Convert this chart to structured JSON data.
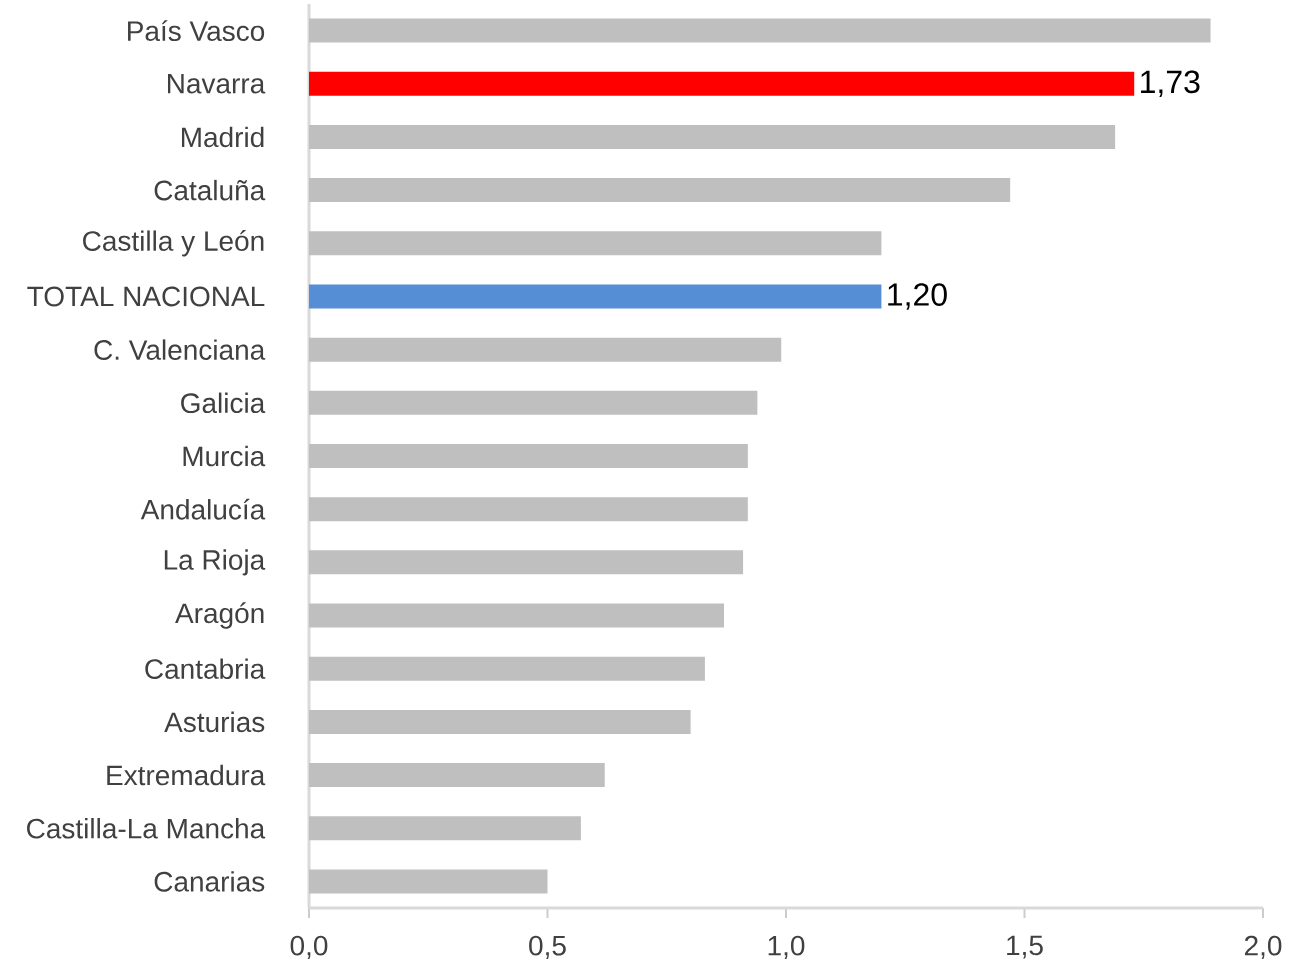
{
  "chart_data": {
    "type": "bar",
    "orientation": "horizontal",
    "categories": [
      "País Vasco",
      "Navarra",
      "Madrid",
      "Cataluña",
      "Castilla y León",
      "TOTAL NACIONAL",
      "C. Valenciana",
      "Galicia",
      "Murcia",
      "Andalucía",
      "La Rioja",
      "Aragón",
      "Cantabria",
      "Asturias",
      "Extremadura",
      "Castilla-La Mancha",
      "Canarias"
    ],
    "values": [
      1.89,
      1.73,
      1.69,
      1.47,
      1.2,
      1.2,
      0.99,
      0.94,
      0.92,
      0.92,
      0.91,
      0.87,
      0.83,
      0.8,
      0.62,
      0.57,
      0.5
    ],
    "colors": [
      "#bfbfbf",
      "#ff0000",
      "#bfbfbf",
      "#bfbfbf",
      "#bfbfbf",
      "#558ed5",
      "#bfbfbf",
      "#bfbfbf",
      "#bfbfbf",
      "#bfbfbf",
      "#bfbfbf",
      "#bfbfbf",
      "#bfbfbf",
      "#bfbfbf",
      "#bfbfbf",
      "#bfbfbf",
      "#bfbfbf"
    ],
    "value_labels": [
      null,
      "1,73",
      null,
      null,
      null,
      "1,20",
      null,
      null,
      null,
      null,
      null,
      null,
      null,
      null,
      null,
      null,
      null
    ],
    "xlim": [
      0,
      2.0
    ],
    "xticks": [
      {
        "value": 0,
        "label": "0,0"
      },
      {
        "value": 0.5,
        "label": "0,5"
      },
      {
        "value": 1.0,
        "label": "1,0"
      },
      {
        "value": 1.5,
        "label": "1,5"
      },
      {
        "value": 2.0,
        "label": "2,0"
      }
    ]
  }
}
